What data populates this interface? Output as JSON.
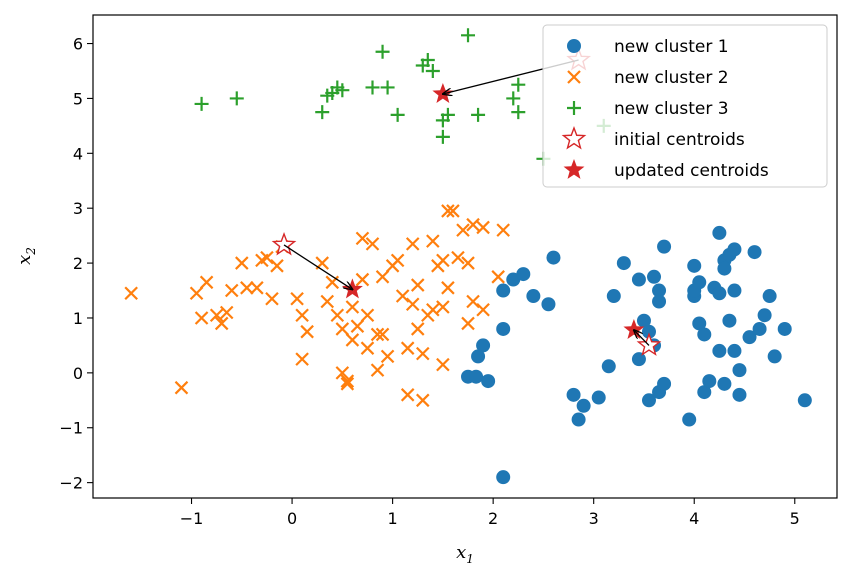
{
  "chart_data": {
    "type": "scatter",
    "xlabel": "x",
    "xlabel_sub": "1",
    "ylabel": "x",
    "ylabel_sub": "2",
    "xlim": [
      -1.98,
      5.42
    ],
    "ylim": [
      -2.28,
      6.52
    ],
    "xticks": [
      -1,
      0,
      1,
      2,
      3,
      4,
      5
    ],
    "yticks": [
      -2,
      -1,
      0,
      1,
      2,
      3,
      4,
      5,
      6
    ],
    "grid": false,
    "legend_position": "top-right",
    "colors": {
      "cluster1": "#1f77b4",
      "cluster2": "#ff7f0e",
      "cluster3": "#2ca02c",
      "centroid": "#d62728"
    },
    "series": [
      {
        "name": "new cluster 1",
        "marker": "circle",
        "color": "#1f77b4",
        "points": [
          [
            2.2,
            1.7
          ],
          [
            2.3,
            1.8
          ],
          [
            2.1,
            1.5
          ],
          [
            2.4,
            1.4
          ],
          [
            2.55,
            1.25
          ],
          [
            2.6,
            2.1
          ],
          [
            2.1,
            0.8
          ],
          [
            1.9,
            0.5
          ],
          [
            1.85,
            0.3
          ],
          [
            1.75,
            -0.07
          ],
          [
            1.83,
            -0.07
          ],
          [
            1.95,
            -0.15
          ],
          [
            2.1,
            -1.9
          ],
          [
            2.8,
            -0.4
          ],
          [
            2.9,
            -0.6
          ],
          [
            2.85,
            -0.85
          ],
          [
            3.05,
            -0.45
          ],
          [
            3.15,
            0.12
          ],
          [
            3.2,
            1.4
          ],
          [
            3.3,
            2.0
          ],
          [
            3.45,
            1.7
          ],
          [
            3.6,
            1.75
          ],
          [
            3.65,
            1.5
          ],
          [
            3.65,
            1.3
          ],
          [
            3.7,
            2.3
          ],
          [
            3.5,
            0.95
          ],
          [
            3.55,
            0.75
          ],
          [
            3.45,
            0.25
          ],
          [
            3.6,
            0.5
          ],
          [
            3.55,
            -0.5
          ],
          [
            3.65,
            -0.35
          ],
          [
            3.7,
            -0.2
          ],
          [
            3.95,
            -0.85
          ],
          [
            4.0,
            1.4
          ],
          [
            4.0,
            1.5
          ],
          [
            4.05,
            1.65
          ],
          [
            4.0,
            1.95
          ],
          [
            4.05,
            0.9
          ],
          [
            4.1,
            0.7
          ],
          [
            4.1,
            -0.35
          ],
          [
            4.15,
            -0.15
          ],
          [
            4.2,
            1.55
          ],
          [
            4.25,
            1.45
          ],
          [
            4.25,
            2.55
          ],
          [
            4.3,
            2.05
          ],
          [
            4.35,
            2.15
          ],
          [
            4.3,
            1.9
          ],
          [
            4.4,
            2.25
          ],
          [
            4.35,
            0.95
          ],
          [
            4.4,
            1.5
          ],
          [
            4.25,
            0.4
          ],
          [
            4.4,
            0.4
          ],
          [
            4.3,
            -0.2
          ],
          [
            4.45,
            0.05
          ],
          [
            4.45,
            -0.4
          ],
          [
            4.6,
            2.2
          ],
          [
            4.55,
            0.65
          ],
          [
            4.65,
            0.8
          ],
          [
            4.7,
            1.05
          ],
          [
            4.75,
            1.4
          ],
          [
            4.8,
            0.3
          ],
          [
            4.9,
            0.8
          ],
          [
            5.1,
            -0.5
          ]
        ]
      },
      {
        "name": "new cluster 2",
        "marker": "x",
        "color": "#ff7f0e",
        "points": [
          [
            -1.6,
            1.45
          ],
          [
            -1.1,
            -0.27
          ],
          [
            -0.95,
            1.45
          ],
          [
            -0.9,
            1.0
          ],
          [
            -0.85,
            1.65
          ],
          [
            -0.75,
            1.05
          ],
          [
            -0.7,
            0.9
          ],
          [
            -0.65,
            1.1
          ],
          [
            -0.6,
            1.5
          ],
          [
            -0.5,
            2.0
          ],
          [
            -0.45,
            1.55
          ],
          [
            -0.35,
            1.55
          ],
          [
            -0.3,
            2.05
          ],
          [
            -0.25,
            2.1
          ],
          [
            -0.2,
            1.35
          ],
          [
            -0.15,
            1.95
          ],
          [
            -0.1,
            2.3
          ],
          [
            0.05,
            1.35
          ],
          [
            0.1,
            1.05
          ],
          [
            0.15,
            0.75
          ],
          [
            0.1,
            0.25
          ],
          [
            0.3,
            2.0
          ],
          [
            0.35,
            1.3
          ],
          [
            0.4,
            1.65
          ],
          [
            0.45,
            1.05
          ],
          [
            0.5,
            0.8
          ],
          [
            0.5,
            0.0
          ],
          [
            0.55,
            -0.15
          ],
          [
            0.55,
            -0.2
          ],
          [
            0.6,
            0.6
          ],
          [
            0.6,
            1.2
          ],
          [
            0.65,
            0.85
          ],
          [
            0.7,
            1.7
          ],
          [
            0.7,
            2.45
          ],
          [
            0.75,
            0.45
          ],
          [
            0.75,
            1.05
          ],
          [
            0.8,
            2.35
          ],
          [
            0.85,
            0.05
          ],
          [
            0.85,
            0.7
          ],
          [
            0.9,
            0.7
          ],
          [
            0.9,
            1.75
          ],
          [
            0.95,
            0.3
          ],
          [
            1.0,
            1.95
          ],
          [
            1.05,
            2.05
          ],
          [
            1.1,
            1.4
          ],
          [
            1.15,
            0.45
          ],
          [
            1.15,
            -0.4
          ],
          [
            1.2,
            2.35
          ],
          [
            1.2,
            1.25
          ],
          [
            1.25,
            1.6
          ],
          [
            1.25,
            0.8
          ],
          [
            1.3,
            0.35
          ],
          [
            1.35,
            1.05
          ],
          [
            1.4,
            1.15
          ],
          [
            1.4,
            2.4
          ],
          [
            1.45,
            1.95
          ],
          [
            1.5,
            2.05
          ],
          [
            1.5,
            1.2
          ],
          [
            1.5,
            0.15
          ],
          [
            1.3,
            -0.5
          ],
          [
            1.55,
            1.55
          ],
          [
            1.55,
            2.95
          ],
          [
            1.6,
            2.95
          ],
          [
            1.65,
            2.1
          ],
          [
            1.7,
            2.6
          ],
          [
            1.75,
            2.0
          ],
          [
            1.8,
            1.3
          ],
          [
            1.8,
            2.7
          ],
          [
            1.75,
            0.9
          ],
          [
            1.9,
            1.15
          ],
          [
            1.9,
            2.65
          ],
          [
            2.05,
            1.75
          ],
          [
            2.1,
            2.6
          ]
        ]
      },
      {
        "name": "new cluster 3",
        "marker": "plus",
        "color": "#2ca02c",
        "points": [
          [
            -0.9,
            4.9
          ],
          [
            -0.55,
            5.0
          ],
          [
            0.3,
            4.75
          ],
          [
            0.35,
            5.05
          ],
          [
            0.4,
            5.1
          ],
          [
            0.45,
            5.2
          ],
          [
            0.5,
            5.15
          ],
          [
            0.8,
            5.2
          ],
          [
            0.9,
            5.85
          ],
          [
            0.95,
            5.2
          ],
          [
            1.05,
            4.7
          ],
          [
            1.3,
            5.6
          ],
          [
            1.35,
            5.7
          ],
          [
            1.4,
            5.5
          ],
          [
            1.5,
            4.6
          ],
          [
            1.55,
            4.7
          ],
          [
            1.5,
            4.3
          ],
          [
            1.75,
            6.15
          ],
          [
            1.85,
            4.7
          ],
          [
            2.2,
            5.0
          ],
          [
            2.25,
            4.75
          ],
          [
            2.25,
            5.25
          ],
          [
            2.5,
            3.9
          ],
          [
            3.1,
            4.5
          ]
        ]
      },
      {
        "name": "initial centroids",
        "marker": "star-open",
        "color": "#d62728",
        "points": [
          [
            -0.08,
            2.33
          ],
          [
            2.85,
            5.7
          ],
          [
            3.55,
            0.5
          ]
        ]
      },
      {
        "name": "updated centroids",
        "marker": "star-filled",
        "color": "#d62728",
        "points": [
          [
            0.6,
            1.52
          ],
          [
            1.5,
            5.08
          ],
          [
            3.4,
            0.78
          ]
        ]
      }
    ],
    "arrows": [
      {
        "from": [
          -0.08,
          2.33
        ],
        "to": [
          0.6,
          1.52
        ]
      },
      {
        "from": [
          2.85,
          5.7
        ],
        "to": [
          1.5,
          5.08
        ]
      },
      {
        "from": [
          3.55,
          0.5
        ],
        "to": [
          3.4,
          0.78
        ]
      }
    ]
  }
}
